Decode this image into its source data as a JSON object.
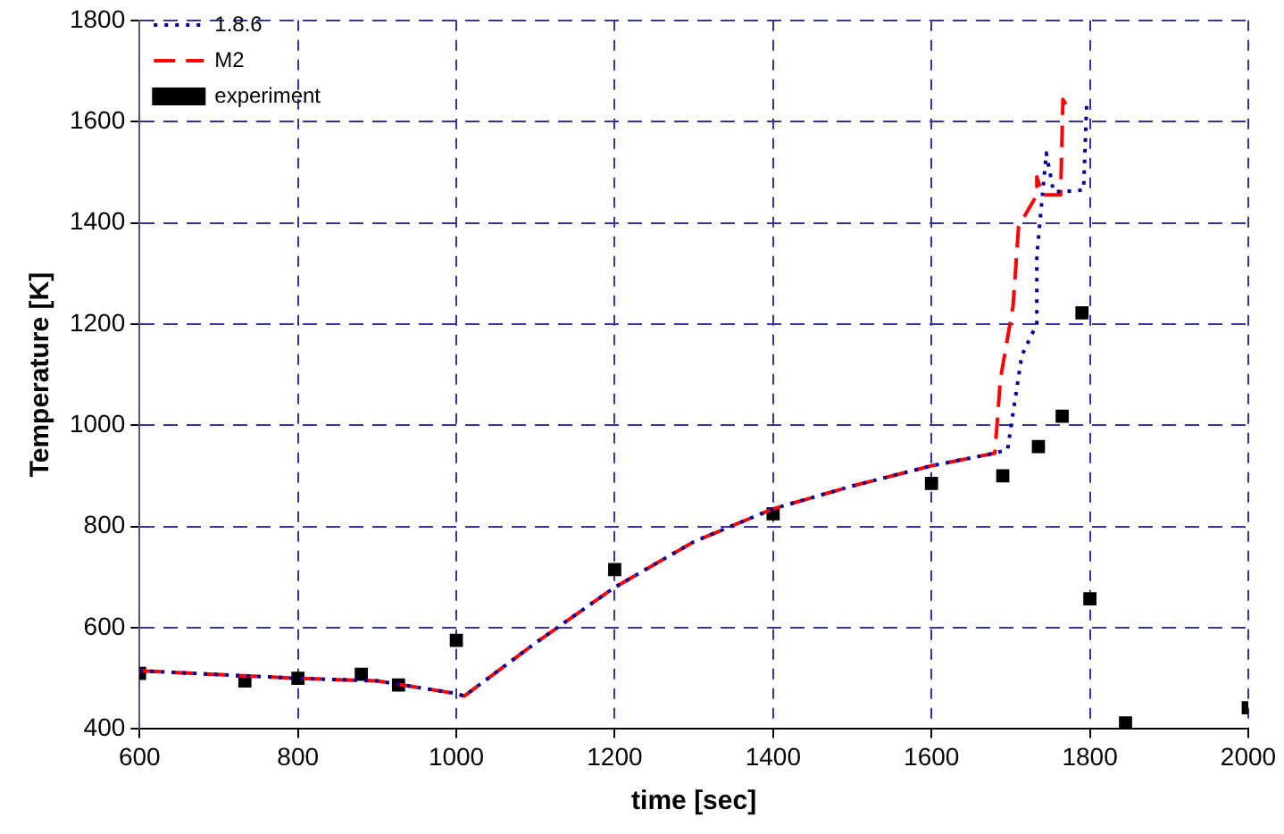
{
  "chart_data": {
    "type": "line",
    "xlabel": "time [sec]",
    "ylabel": "Temperature [K]",
    "xlim": [
      600,
      2000
    ],
    "xticks": [
      600,
      800,
      1000,
      1200,
      1400,
      1600,
      1800,
      2000
    ],
    "ylim": [
      400,
      1800
    ],
    "yticks": [
      400,
      600,
      800,
      1000,
      1200,
      1400,
      1600,
      1800
    ],
    "grid": true,
    "legend": "top left",
    "series": [
      {
        "name": "1.8.6",
        "color": "#000099",
        "line_style": "dotted",
        "marker": "none",
        "x": [
          600,
          800,
          900,
          1000,
          1010,
          1100,
          1200,
          1300,
          1400,
          1500,
          1600,
          1680,
          1696,
          1714,
          1733,
          1733,
          1745,
          1754,
          1770,
          1792,
          1796
        ],
        "values": [
          515,
          500,
          495,
          470,
          465,
          570,
          680,
          770,
          835,
          880,
          920,
          945,
          952,
          1138,
          1200,
          1335,
          1538,
          1462,
          1462,
          1465,
          1636
        ]
      },
      {
        "name": "M2",
        "color": "#ff0000",
        "line_style": "dashed",
        "marker": "none",
        "x": [
          600,
          800,
          900,
          1000,
          1010,
          1100,
          1200,
          1300,
          1400,
          1500,
          1600,
          1680,
          1687,
          1703,
          1710,
          1733,
          1733,
          1740,
          1763,
          1766,
          1773
        ],
        "values": [
          515,
          500,
          495,
          470,
          465,
          570,
          680,
          770,
          835,
          880,
          920,
          945,
          1091,
          1236,
          1393,
          1455,
          1491,
          1455,
          1455,
          1644,
          1625
        ]
      },
      {
        "name": "experiment",
        "type": "scatter",
        "color": "#000000",
        "marker": "square",
        "x": [
          600,
          733,
          800,
          880,
          927,
          1000,
          1200,
          1400,
          1600,
          1690,
          1735,
          1765,
          1790,
          1800,
          1845,
          2000
        ],
        "values": [
          510,
          495,
          500,
          508,
          487,
          575,
          715,
          825,
          885,
          900,
          958,
          1018,
          1222,
          657,
          412,
          442
        ]
      }
    ]
  }
}
